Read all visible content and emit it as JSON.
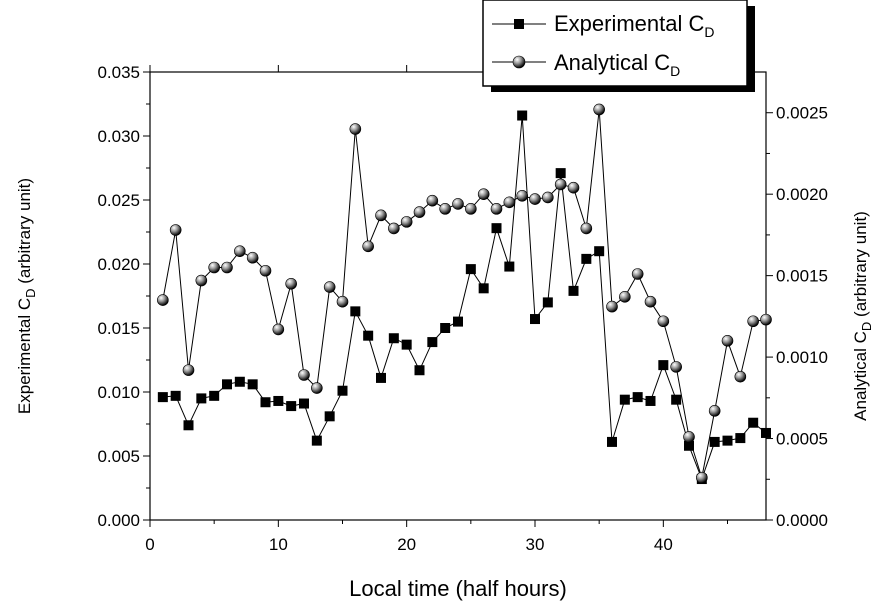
{
  "chart_data": {
    "type": "line",
    "xlabel": "Local time (half hours)",
    "ylabel_left": {
      "main": "Experimental C",
      "sub": "D",
      "suffix": " (arbitrary unit)"
    },
    "ylabel_right": {
      "main": "Analytical C",
      "sub": "D",
      "suffix": " (arbitrary unit)"
    },
    "xlim": [
      0,
      48
    ],
    "ylim_left": [
      0,
      0.035
    ],
    "ylim_right": [
      0,
      0.00275
    ],
    "x_ticks": [
      "0",
      "10",
      "20",
      "30",
      "40"
    ],
    "x_tick_values": [
      0,
      10,
      20,
      30,
      40
    ],
    "y_left_ticks": [
      "0.000",
      "0.005",
      "0.010",
      "0.015",
      "0.020",
      "0.025",
      "0.030",
      "0.035"
    ],
    "y_left_tick_values": [
      0,
      0.005,
      0.01,
      0.015,
      0.02,
      0.025,
      0.03,
      0.035
    ],
    "y_right_ticks": [
      "0.0000",
      "0.0005",
      "0.0010",
      "0.0015",
      "0.0020",
      "0.0025"
    ],
    "y_right_tick_values": [
      0,
      0.0005,
      0.001,
      0.0015,
      0.002,
      0.0025
    ],
    "grid": false,
    "legend_position": "top-right",
    "series": [
      {
        "name": "Experimental C",
        "name_sub": "D",
        "axis": "left",
        "marker": "square",
        "x": [
          1,
          2,
          3,
          4,
          5,
          6,
          7,
          8,
          9,
          10,
          11,
          12,
          13,
          14,
          15,
          16,
          17,
          18,
          19,
          20,
          21,
          22,
          23,
          24,
          25,
          26,
          27,
          28,
          29,
          30,
          31,
          32,
          33,
          34,
          35,
          36,
          37,
          38,
          39,
          40,
          41,
          42,
          43,
          44,
          45,
          46,
          47,
          48
        ],
        "values": [
          0.0096,
          0.0097,
          0.0074,
          0.0095,
          0.0097,
          0.0106,
          0.0108,
          0.0106,
          0.0092,
          0.0093,
          0.0089,
          0.0091,
          0.0062,
          0.0081,
          0.0101,
          0.0163,
          0.0144,
          0.0111,
          0.0142,
          0.0137,
          0.0117,
          0.0139,
          0.015,
          0.0155,
          0.0196,
          0.0181,
          0.0228,
          0.0198,
          0.0316,
          0.0157,
          0.017,
          0.0271,
          0.0179,
          0.0204,
          0.021,
          0.0061,
          0.0094,
          0.0096,
          0.0093,
          0.0121,
          0.0094,
          0.0058,
          0.0032,
          0.0061,
          0.0062,
          0.0064,
          0.0076,
          0.0068
        ]
      },
      {
        "name": "Analytical C",
        "name_sub": "D",
        "axis": "right",
        "marker": "sphere",
        "x": [
          1,
          2,
          3,
          4,
          5,
          6,
          7,
          8,
          9,
          10,
          11,
          12,
          13,
          14,
          15,
          16,
          17,
          18,
          19,
          20,
          21,
          22,
          23,
          24,
          25,
          26,
          27,
          28,
          29,
          30,
          31,
          32,
          33,
          34,
          35,
          36,
          37,
          38,
          39,
          40,
          41,
          42,
          43,
          44,
          45,
          46,
          47,
          48
        ],
        "values": [
          0.00135,
          0.00178,
          0.00092,
          0.00147,
          0.00155,
          0.00155,
          0.00165,
          0.00161,
          0.00153,
          0.00117,
          0.00145,
          0.00089,
          0.00081,
          0.00143,
          0.00134,
          0.0024,
          0.00168,
          0.00187,
          0.00179,
          0.00183,
          0.00189,
          0.00196,
          0.00191,
          0.00194,
          0.00191,
          0.002,
          0.00191,
          0.00195,
          0.00199,
          0.00197,
          0.00198,
          0.00206,
          0.00204,
          0.00179,
          0.00252,
          0.00131,
          0.00137,
          0.00151,
          0.00134,
          0.00122,
          0.00094,
          0.00051,
          0.00026,
          0.00067,
          0.0011,
          0.00088,
          0.00122,
          0.00123
        ]
      }
    ]
  }
}
